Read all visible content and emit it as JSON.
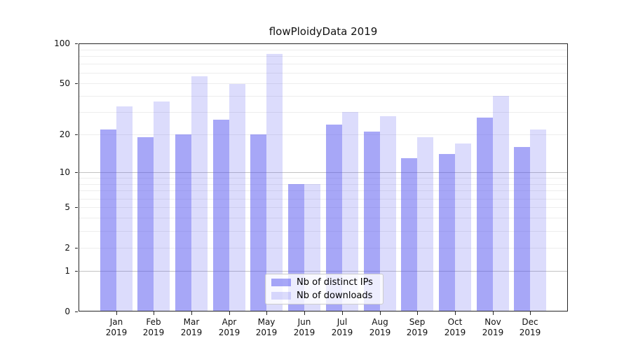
{
  "title": "flowPloidyData 2019",
  "legend": {
    "items": [
      {
        "label": "Nb of distinct IPs",
        "color": "rgba(80,80,240,0.5)"
      },
      {
        "label": "Nb of downloads",
        "color": "rgba(80,80,240,0.2)"
      }
    ]
  },
  "axes": {
    "ytick_labels": [
      "0",
      "1",
      "2",
      "5",
      "10",
      "20",
      "50",
      "100"
    ],
    "xtick_year": "2019"
  },
  "chart_data": {
    "type": "bar",
    "title": "flowPloidyData 2019",
    "categories": [
      "Jan 2019",
      "Feb 2019",
      "Mar 2019",
      "Apr 2019",
      "May 2019",
      "Jun 2019",
      "Jul 2019",
      "Aug 2019",
      "Sep 2019",
      "Oct 2019",
      "Nov 2019",
      "Dec 2019"
    ],
    "series": [
      {
        "name": "Nb of distinct IPs",
        "color": "rgba(80,80,240,0.5)",
        "values": [
          22,
          19,
          20,
          26,
          20,
          8,
          24,
          21,
          13,
          14,
          27,
          16
        ]
      },
      {
        "name": "Nb of downloads",
        "color": "rgba(80,80,240,0.2)",
        "values": [
          33,
          36,
          56,
          49,
          83,
          8,
          30,
          28,
          19,
          17,
          40,
          22
        ]
      }
    ],
    "xlabel": "",
    "ylabel": "",
    "yscale": "log1p",
    "ylim": [
      0,
      100
    ],
    "yticks": [
      0,
      1,
      2,
      5,
      10,
      20,
      50,
      100
    ],
    "ygrid_major": [
      1,
      10,
      100
    ],
    "ygrid_minor": [
      2,
      3,
      4,
      5,
      6,
      7,
      8,
      9,
      20,
      30,
      40,
      50,
      60,
      70,
      80,
      90
    ],
    "grid": "horizontal",
    "legend_position": "inside-bottom-center"
  }
}
